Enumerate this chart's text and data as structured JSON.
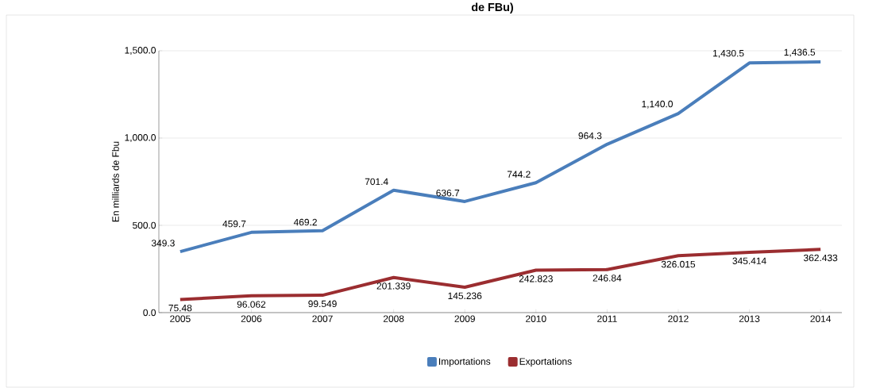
{
  "chart_data": {
    "type": "line",
    "title": "de FBu)",
    "ylabel": "En milliards de Fbu",
    "categories": [
      "2005",
      "2006",
      "2007",
      "2008",
      "2009",
      "2010",
      "2011",
      "2012",
      "2013",
      "2014"
    ],
    "series": [
      {
        "name": "Importations",
        "color": "#4a7ebb",
        "values": [
          349.3,
          459.7,
          469.2,
          701.4,
          636.7,
          744.2,
          964.3,
          1140.0,
          1430.5,
          1436.5
        ],
        "value_labels": [
          "349.3",
          "459.7",
          "469.2",
          "701.4",
          "636.7",
          "744.2",
          "964.3",
          "1,140.0",
          "1,430.5",
          "1,436.5"
        ]
      },
      {
        "name": "Exportations",
        "color": "#9b2d30",
        "values": [
          75.48,
          96.062,
          99.549,
          201.339,
          145.236,
          242.823,
          246.84,
          326.015,
          345.414,
          362.433
        ],
        "value_labels": [
          "75.48",
          "96.062",
          "99.549",
          "201.339",
          "145.236",
          "242.823",
          "246.84",
          "326.015",
          "345.414",
          "362.433"
        ]
      }
    ],
    "ylim": [
      0,
      1500
    ],
    "yticks": [
      {
        "value": 0,
        "label": "0.0"
      },
      {
        "value": 500,
        "label": "500.0"
      },
      {
        "value": 1000,
        "label": "1,000.0"
      },
      {
        "value": 1500,
        "label": "1,500.0"
      }
    ],
    "grid": "y",
    "legend": "bottom",
    "marker": "none",
    "line_style": "solid"
  }
}
